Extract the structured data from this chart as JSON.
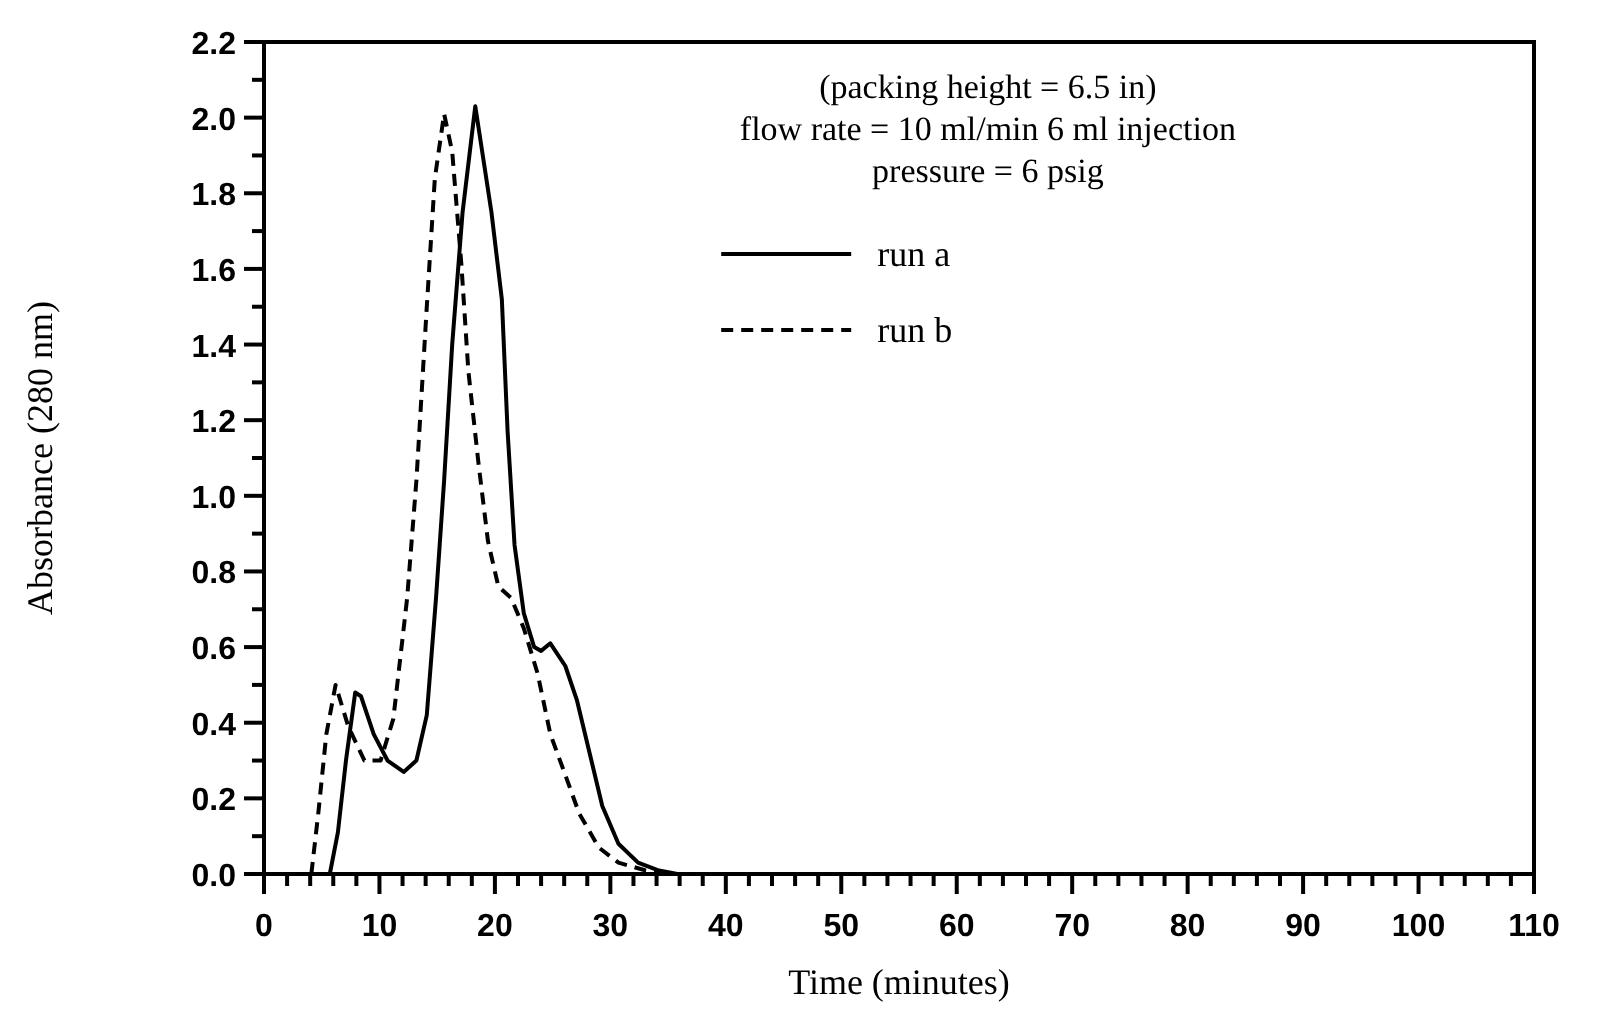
{
  "chart_data": {
    "type": "line",
    "xlabel": "Time (minutes)",
    "ylabel": "Absorbance (280 nm)",
    "annotations": [
      "(packing height = 6.5 in)",
      "flow rate = 10 ml/min   6 ml injection",
      "pressure = 6 psig"
    ],
    "xlim": [
      0,
      110
    ],
    "ylim": [
      0,
      2.2
    ],
    "xticks": [
      0,
      {
        "value": 2,
        "label": null
      },
      {
        "value": 4,
        "label": null
      },
      {
        "value": 6,
        "label": null
      },
      {
        "value": 8,
        "label": null
      },
      10,
      {
        "value": 12,
        "label": null
      },
      {
        "value": 14,
        "label": null
      },
      {
        "value": 16,
        "label": null
      },
      {
        "value": 18,
        "label": null
      },
      20,
      {
        "value": 22,
        "label": null
      },
      {
        "value": 24,
        "label": null
      },
      {
        "value": 26,
        "label": null
      },
      {
        "value": 28,
        "label": null
      },
      30,
      {
        "value": 32,
        "label": null
      },
      {
        "value": 34,
        "label": null
      },
      {
        "value": 36,
        "label": null
      },
      {
        "value": 38,
        "label": null
      },
      40,
      {
        "value": 42,
        "label": null
      },
      {
        "value": 44,
        "label": null
      },
      {
        "value": 46,
        "label": null
      },
      {
        "value": 48,
        "label": null
      },
      50,
      {
        "value": 52,
        "label": null
      },
      {
        "value": 54,
        "label": null
      },
      {
        "value": 56,
        "label": null
      },
      {
        "value": 58,
        "label": null
      },
      60,
      {
        "value": 62,
        "label": null
      },
      {
        "value": 64,
        "label": null
      },
      {
        "value": 66,
        "label": null
      },
      {
        "value": 68,
        "label": null
      },
      70,
      {
        "value": 72,
        "label": null
      },
      {
        "value": 74,
        "label": null
      },
      {
        "value": 76,
        "label": null
      },
      {
        "value": 78,
        "label": null
      },
      80,
      {
        "value": 82,
        "label": null
      },
      {
        "value": 84,
        "label": null
      },
      {
        "value": 86,
        "label": null
      },
      {
        "value": 88,
        "label": null
      },
      90,
      {
        "value": 92,
        "label": null
      },
      {
        "value": 94,
        "label": null
      },
      {
        "value": 96,
        "label": null
      },
      {
        "value": 98,
        "label": null
      },
      100,
      {
        "value": 102,
        "label": null
      },
      {
        "value": 104,
        "label": null
      },
      {
        "value": 106,
        "label": null
      },
      {
        "value": 108,
        "label": null
      },
      110
    ],
    "yticks": [
      {
        "value": 0,
        "label": "0.0"
      },
      {
        "value": 0.1,
        "label": null
      },
      {
        "value": 0.2,
        "label": "0.2"
      },
      {
        "value": 0.3,
        "label": null
      },
      {
        "value": 0.4,
        "label": "0.4"
      },
      {
        "value": 0.5,
        "label": null
      },
      {
        "value": 0.6,
        "label": "0.6"
      },
      {
        "value": 0.7,
        "label": null
      },
      {
        "value": 0.8,
        "label": "0.8"
      },
      {
        "value": 0.9,
        "label": null
      },
      {
        "value": 1.0,
        "label": "1.0"
      },
      {
        "value": 1.1,
        "label": null
      },
      {
        "value": 1.2,
        "label": "1.2"
      },
      {
        "value": 1.3,
        "label": null
      },
      {
        "value": 1.4,
        "label": "1.4"
      },
      {
        "value": 1.5,
        "label": null
      },
      {
        "value": 1.6,
        "label": "1.6"
      },
      {
        "value": 1.7,
        "label": null
      },
      {
        "value": 1.8,
        "label": "1.8"
      },
      {
        "value": 1.9,
        "label": null
      },
      {
        "value": 2.0,
        "label": "2.0"
      },
      {
        "value": 2.1,
        "label": null
      },
      {
        "value": 2.2,
        "label": "2.2"
      }
    ],
    "grid": false,
    "legend": "top right",
    "series": [
      {
        "name": "run a",
        "color": "#000000",
        "line_style": "solid",
        "x": [
          5.7,
          6.4,
          7.1,
          7.9,
          8.4,
          9.5,
          10.7,
          12.1,
          13.2,
          14.1,
          14.9,
          15.6,
          16.3,
          17.2,
          18.3,
          19.7,
          20.6,
          21.1,
          21.7,
          22.5,
          23.4,
          24.0,
          24.8,
          26.1,
          27.1,
          28.2,
          29.3,
          30.7,
          32.4,
          34.1,
          35.8
        ],
        "values": [
          0,
          0.11,
          0.3,
          0.48,
          0.47,
          0.37,
          0.3,
          0.27,
          0.3,
          0.42,
          0.73,
          1.04,
          1.4,
          1.75,
          2.03,
          1.75,
          1.52,
          1.17,
          0.87,
          0.69,
          0.6,
          0.59,
          0.61,
          0.55,
          0.46,
          0.32,
          0.18,
          0.08,
          0.03,
          0.01,
          0
        ]
      },
      {
        "name": "run b",
        "color": "#000000",
        "line_style": "dashed",
        "x": [
          4.1,
          4.7,
          5.4,
          6.2,
          7.3,
          8.7,
          10.1,
          11.2,
          12.4,
          13.2,
          14.1,
          14.8,
          15.6,
          16.3,
          17.1,
          17.7,
          18.6,
          19.4,
          20.3,
          21.4,
          22.5,
          23.7,
          24.8,
          26.0,
          27.3,
          29.0,
          30.7,
          33.0,
          35.3
        ],
        "values": [
          0,
          0.16,
          0.37,
          0.5,
          0.39,
          0.3,
          0.3,
          0.41,
          0.73,
          1.04,
          1.5,
          1.84,
          2.01,
          1.91,
          1.61,
          1.33,
          1.08,
          0.88,
          0.76,
          0.73,
          0.65,
          0.53,
          0.37,
          0.27,
          0.16,
          0.07,
          0.03,
          0.01,
          0
        ]
      }
    ]
  }
}
